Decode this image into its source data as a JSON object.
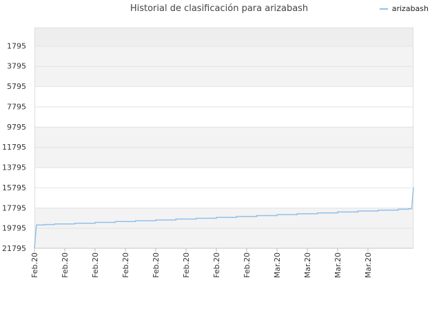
{
  "chart_data": {
    "type": "line",
    "title": "Historial de clasificación para arizabash",
    "legend": {
      "position": "top-right"
    },
    "series": [
      {
        "name": "arizabash",
        "color": "#90c0ea",
        "points": [
          {
            "x": 0,
            "y": 21795
          },
          {
            "x": 0.8,
            "y": 19500
          },
          {
            "x": 4,
            "y": 19450
          },
          {
            "x": 8,
            "y": 19395
          },
          {
            "x": 16,
            "y": 19320
          },
          {
            "x": 24,
            "y": 19240
          },
          {
            "x": 32,
            "y": 19160
          },
          {
            "x": 40,
            "y": 19080
          },
          {
            "x": 48,
            "y": 19000
          },
          {
            "x": 56,
            "y": 18910
          },
          {
            "x": 64,
            "y": 18830
          },
          {
            "x": 72,
            "y": 18750
          },
          {
            "x": 80,
            "y": 18660
          },
          {
            "x": 88,
            "y": 18570
          },
          {
            "x": 96,
            "y": 18480
          },
          {
            "x": 104,
            "y": 18390
          },
          {
            "x": 112,
            "y": 18300
          },
          {
            "x": 120,
            "y": 18210
          },
          {
            "x": 128,
            "y": 18120
          },
          {
            "x": 136,
            "y": 18030
          },
          {
            "x": 144,
            "y": 17940
          },
          {
            "x": 148,
            "y": 17895
          },
          {
            "x": 149.3,
            "y": 17895
          },
          {
            "x": 150,
            "y": 15795
          }
        ]
      }
    ],
    "y_axis": {
      "ticks": [
        1795,
        3795,
        5795,
        7795,
        9795,
        11795,
        13795,
        15795,
        17795,
        19795,
        21795
      ],
      "ylim": [
        0,
        21795
      ],
      "inverted": true
    },
    "x_axis": {
      "tick_labels": [
        "Feb.20",
        "Feb.20",
        "Feb.20",
        "Feb.20",
        "Feb.20",
        "Feb.20",
        "Feb.20",
        "Feb.20",
        "Mar.20",
        "Mar.20",
        "Mar.20",
        "Mar.20"
      ],
      "tick_positions": [
        0,
        12,
        24,
        36,
        48,
        60,
        72,
        84,
        96,
        108,
        120,
        132
      ],
      "xlim": [
        0,
        150
      ]
    },
    "grid": true,
    "band_colors": [
      "#eeeeee",
      "#f3f3f3",
      "#ffffff"
    ]
  }
}
